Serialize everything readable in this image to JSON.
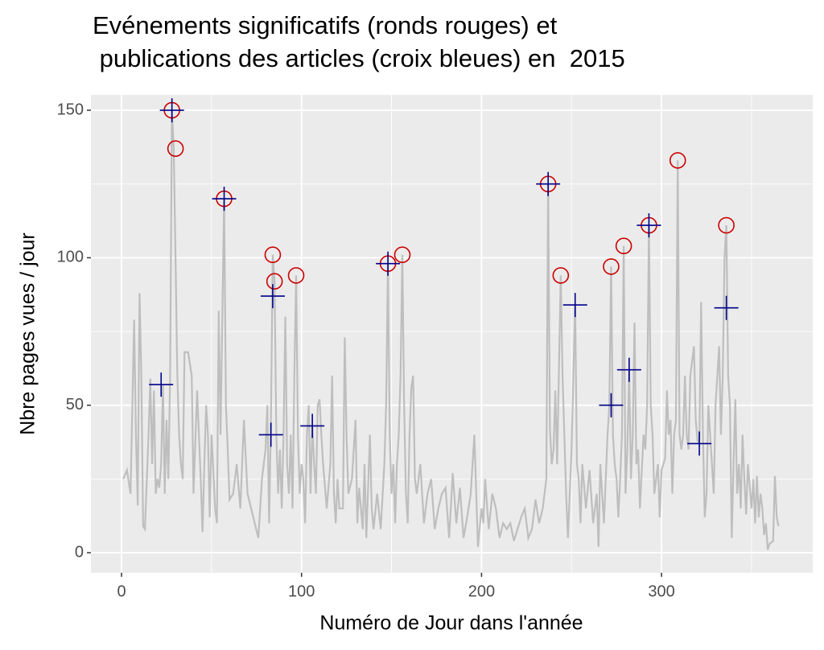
{
  "chart_data": {
    "type": "line",
    "title": [
      "Evénements significatifs (ronds rouges) et",
      " publications des articles (croix bleues) en  2015"
    ],
    "x_label": "Numéro de Jour dans l'année",
    "y_label": "Nbre pages vues / jour",
    "xlim": [
      -17,
      384
    ],
    "ylim": [
      -6.8,
      155.2
    ],
    "xticks": [
      0,
      100,
      200,
      300
    ],
    "yticks": [
      0,
      50,
      100,
      150
    ],
    "x_minor_grid": [
      50,
      150,
      250,
      350
    ],
    "y_minor_grid": [
      25,
      75,
      125
    ],
    "grid": true,
    "background": "#ebebeb",
    "grid_color": "#ffffff",
    "series": [
      {
        "kind": "line",
        "color": "#bebebe",
        "x": [
          1,
          3,
          5,
          7,
          8,
          9,
          10,
          11,
          12,
          13,
          15,
          16,
          17,
          18,
          19,
          20,
          21,
          22,
          23,
          24,
          25,
          26,
          27,
          28,
          29,
          30,
          31,
          32,
          33,
          34,
          35,
          37,
          39,
          40,
          42,
          44,
          45,
          46,
          47,
          48,
          49,
          50,
          52,
          53,
          54,
          55,
          56,
          57,
          58,
          59,
          60,
          62,
          64,
          66,
          68,
          70,
          72,
          74,
          76,
          78,
          80,
          81,
          82,
          83,
          84,
          85,
          86,
          87,
          88,
          89,
          90,
          91,
          92,
          93,
          94,
          95,
          96,
          97,
          98,
          99,
          100,
          101,
          102,
          103,
          104,
          105,
          106,
          107,
          108,
          109,
          110,
          111,
          112,
          114,
          116,
          117,
          118,
          119,
          120,
          121,
          123,
          124,
          125,
          126,
          128,
          130,
          131,
          132,
          134,
          135,
          136,
          138,
          139,
          140,
          142,
          144,
          146,
          147,
          148,
          149,
          150,
          151,
          152,
          153,
          154,
          155,
          156,
          157,
          158,
          159,
          160,
          161,
          162,
          163,
          164,
          166,
          168,
          170,
          172,
          174,
          176,
          178,
          180,
          182,
          184,
          186,
          188,
          190,
          192,
          194,
          196,
          198,
          200,
          201,
          202,
          204,
          206,
          208,
          210,
          212,
          214,
          216,
          218,
          220,
          222,
          224,
          226,
          228,
          230,
          232,
          234,
          236,
          237,
          238,
          239,
          240,
          241,
          242,
          244,
          245,
          246,
          247,
          248,
          250,
          252,
          253,
          254,
          255,
          256,
          258,
          260,
          262,
          264,
          265,
          266,
          268,
          270,
          271,
          272,
          273,
          274,
          275,
          276,
          277,
          278,
          279,
          280,
          281,
          282,
          283,
          284,
          285,
          286,
          287,
          288,
          290,
          291,
          292,
          293,
          294,
          295,
          296,
          298,
          299,
          300,
          302,
          303,
          304,
          305,
          306,
          307,
          308,
          309,
          310,
          311,
          312,
          313,
          314,
          315,
          316,
          318,
          319,
          320,
          321,
          322,
          323,
          324,
          325,
          326,
          327,
          328,
          329,
          330,
          332,
          333,
          334,
          335,
          336,
          337,
          338,
          339,
          340,
          341,
          342,
          343,
          344,
          345,
          346,
          347,
          348,
          350,
          351,
          352,
          353,
          354,
          355,
          356,
          357,
          358,
          359,
          360,
          362,
          363,
          364,
          365
        ],
        "values": [
          25,
          28,
          20,
          79,
          40,
          16,
          88,
          60,
          9,
          8,
          40,
          59,
          30,
          55,
          20,
          25,
          22,
          30,
          57,
          20,
          45,
          25,
          60,
          150,
          137,
          100,
          60,
          40,
          30,
          25,
          68,
          68,
          60,
          20,
          55,
          25,
          7,
          30,
          50,
          40,
          12,
          40,
          15,
          10,
          82,
          40,
          80,
          120,
          50,
          35,
          18,
          20,
          30,
          15,
          45,
          20,
          15,
          10,
          5,
          25,
          35,
          50,
          10,
          45,
          101,
          92,
          40,
          20,
          35,
          15,
          40,
          80,
          30,
          20,
          40,
          15,
          60,
          94,
          40,
          20,
          30,
          25,
          10,
          40,
          50,
          20,
          43,
          30,
          20,
          50,
          52,
          40,
          30,
          15,
          30,
          60,
          20,
          10,
          25,
          15,
          15,
          73,
          40,
          20,
          25,
          45,
          10,
          22,
          8,
          30,
          5,
          40,
          15,
          8,
          20,
          8,
          30,
          50,
          98,
          40,
          20,
          30,
          10,
          30,
          40,
          60,
          101,
          50,
          20,
          10,
          40,
          56,
          60,
          25,
          20,
          30,
          10,
          20,
          25,
          8,
          15,
          20,
          22,
          5,
          27,
          10,
          22,
          5,
          12,
          20,
          40,
          2,
          15,
          10,
          25,
          8,
          20,
          15,
          5,
          10,
          8,
          10,
          4,
          8,
          12,
          15,
          5,
          8,
          18,
          10,
          15,
          25,
          125,
          42,
          30,
          35,
          55,
          30,
          94,
          60,
          40,
          20,
          5,
          35,
          84,
          30,
          25,
          10,
          30,
          15,
          28,
          10,
          20,
          2,
          30,
          10,
          40,
          50,
          97,
          40,
          30,
          25,
          12,
          25,
          40,
          104,
          20,
          35,
          62,
          25,
          40,
          78,
          30,
          35,
          15,
          40,
          35,
          50,
          111,
          50,
          40,
          20,
          30,
          12,
          28,
          32,
          55,
          40,
          45,
          20,
          40,
          45,
          133,
          40,
          35,
          40,
          60,
          40,
          35,
          60,
          70,
          45,
          38,
          37,
          85,
          40,
          12,
          20,
          50,
          40,
          30,
          20,
          50,
          70,
          40,
          60,
          100,
          111,
          60,
          50,
          5,
          30,
          52,
          20,
          30,
          15,
          40,
          25,
          13,
          30,
          15,
          25,
          10,
          26,
          12,
          20,
          15,
          6,
          10,
          1,
          3,
          4,
          26,
          12,
          9
        ]
      },
      {
        "kind": "circle",
        "color": "#cc0000",
        "x": [
          28,
          30,
          57,
          84,
          85,
          97,
          148,
          156,
          237,
          244,
          272,
          279,
          293,
          309,
          336
        ],
        "values": [
          150,
          137,
          120,
          101,
          92,
          94,
          98,
          101,
          125,
          94,
          97,
          104,
          111,
          133,
          111
        ]
      },
      {
        "kind": "cross",
        "color": "#00008b",
        "x": [
          28,
          22,
          57,
          83,
          84,
          106,
          148,
          237,
          252,
          272,
          282,
          293,
          321,
          336
        ],
        "values": [
          150,
          57,
          120,
          40,
          87,
          43,
          98,
          125,
          84,
          50,
          62,
          111,
          37,
          83
        ]
      }
    ]
  }
}
